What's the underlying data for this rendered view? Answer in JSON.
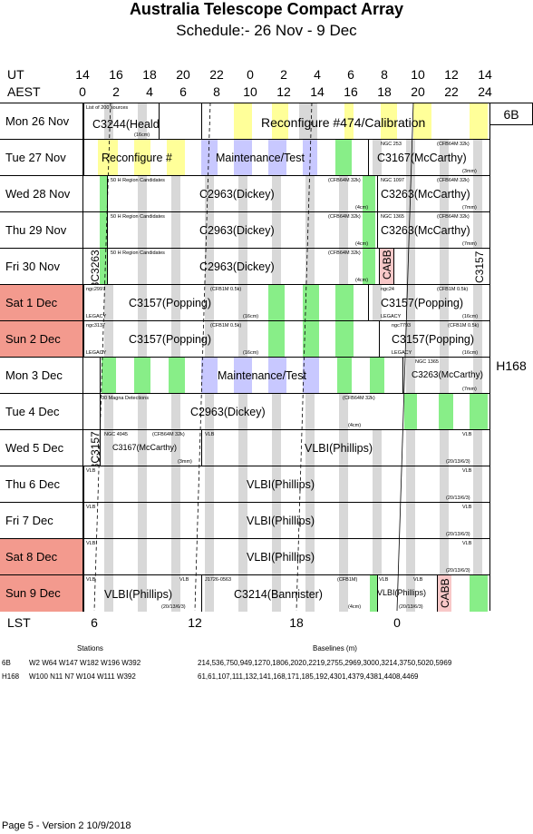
{
  "title": "Australia Telescope Compact Array",
  "subtitle": "Schedule:- 26 Nov - 9  Dec",
  "ut_label": "UT",
  "aest_label": "AEST",
  "lst_label": "LST",
  "ut_ticks": [
    "14",
    "16",
    "18",
    "20",
    "22",
    "0",
    "2",
    "4",
    "6",
    "8",
    "10",
    "12",
    "14"
  ],
  "aest_ticks": [
    "0",
    "2",
    "4",
    "6",
    "8",
    "10",
    "12",
    "14",
    "16",
    "18",
    "20",
    "22",
    "24"
  ],
  "lst_ticks": [
    "6",
    "12",
    "18",
    "0"
  ],
  "configs": {
    "first": "6B",
    "second": "H168"
  },
  "colors": {
    "yellow": "#ffff99",
    "green": "#88ee88",
    "grey": "#d8d8d8",
    "lavender": "#c8c8ff",
    "weekend": "#f39a8e",
    "cabb": "#f8c8c8"
  },
  "days": [
    {
      "label": "Mon  26 Nov",
      "weekend": false
    },
    {
      "label": "Tue   27 Nov",
      "weekend": false
    },
    {
      "label": "Wed  28 Nov",
      "weekend": false
    },
    {
      "label": "Thu   29 Nov",
      "weekend": false
    },
    {
      "label": "Fri    30 Nov",
      "weekend": false
    },
    {
      "label": "Sat    1  Dec",
      "weekend": true
    },
    {
      "label": "Sun   2  Dec",
      "weekend": true
    },
    {
      "label": "Mon   3  Dec",
      "weekend": false
    },
    {
      "label": "Tue    4  Dec",
      "weekend": false
    },
    {
      "label": "Wed   5  Dec",
      "weekend": false
    },
    {
      "label": "Thu   6  Dec",
      "weekend": false
    },
    {
      "label": "Fri    7  Dec",
      "weekend": false
    },
    {
      "label": "Sat   8  Dec",
      "weekend": true
    },
    {
      "label": "Sun   9  Dec",
      "weekend": true
    }
  ],
  "labels": {
    "r0_small": "List of 200 sources",
    "r0_main": "C3244(Heald)",
    "r0_cm": "(16cm)",
    "r0_big": "Reconfigure #474/Calibration",
    "r1_a": "Reconfigure #",
    "r1_b": "Maintenance/Test",
    "r1_c": "C3167(McCarthy)",
    "r1_ngc": "NGC 253",
    "r1_cf": "(CFB64M 32k)",
    "r1_mm": "(3mm)",
    "r2_small": "50 H   Region Candidates",
    "r2_main": "C2963(Dickey)",
    "r2_cf": "(CFB64M 32k)",
    "r2_4cm": "(4cm)",
    "r2_ngc": "NGC 1097",
    "r2_cf2": "(CFB64M 32k)",
    "r2_c": "C3263(McCarthy)",
    "r2_mm": "(7mm)",
    "r3_ngc": "NGC 1365",
    "r4_cabb": "CABB",
    "r4_c3157": "C3157",
    "r_c3263v": "C3263C3263",
    "r5_ngc": "ngc2997",
    "r5_main": "C3157(Popping)",
    "r5_cf": "(CFB1M 0.5k)",
    "r5_16": "(16cm)",
    "r5_legacy": "LEGACY",
    "r5_ngc2": "ngc24",
    "r5_c": "C3157(Popping)",
    "r6_ngc": "ngc3137",
    "r6_ngc2": "ngc7793",
    "r7_main": "Maintenance/Test",
    "r7_c": "C3263(McCarthy)",
    "r7_v": "C3263C3157",
    "r8_small": "30 Magna Detections",
    "r8_main": "C2963(Dickey)",
    "r9_ngc": "NGC 4945",
    "r9_c": "C3167(McCarthy)",
    "r9_3mm": "(3mm)",
    "r9_vlb": "VLB",
    "r9_main": "VLBI(Phillips)",
    "r9_code": "(20/13/6/3)",
    "vlbi": "VLBI(Phillips)",
    "r13_j": "J1726-0563",
    "r13_c": "C3214(Bannister)",
    "r13_cf": "(CFB1M)",
    "r13_cabb": "CABB",
    "stations_hdr": "Stations",
    "baselines_hdr": "Baselines (m)",
    "cfg_6b": "6B",
    "cfg_h168": "H168",
    "st_6b": "W2 W64 W147 W182 W196 W392",
    "st_h168": "W100 N11 N7 W104 W111 W392",
    "bl_6b": "214,536,750,949,1270,1806,2020,2219,2755,2969,3000,3214,3750,5020,5969",
    "bl_h168": "61,61,107,111,132,141,168,171,185,192,4301,4379,4381,4408,4469",
    "footer": "Page 5 - Version 2  10/9/2018"
  }
}
